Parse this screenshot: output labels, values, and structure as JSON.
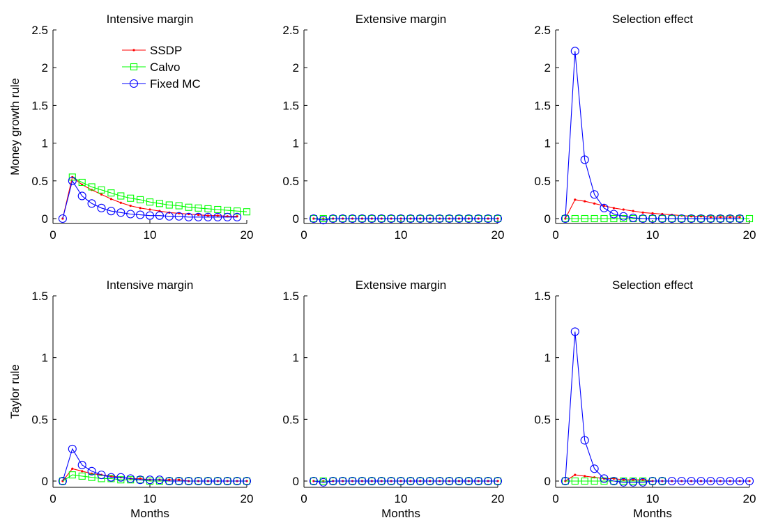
{
  "chart_data": [
    {
      "type": "line",
      "title": "Intensive margin",
      "xlabel": "",
      "ylabel": "Money growth rule",
      "xlim": [
        0,
        20
      ],
      "ylim": [
        -0.1,
        2.5
      ],
      "xticks": [
        "0",
        "10",
        "20"
      ],
      "yticks": [
        "0",
        "0.5",
        "1",
        "1.5",
        "2",
        "2.5"
      ],
      "legend": {
        "position": "top-right",
        "entries": [
          "SSDP",
          "Calvo",
          "Fixed MC"
        ]
      },
      "series": [
        {
          "name": "SSDP",
          "color": "#ff0000",
          "marker": "dot",
          "x": [
            1,
            2,
            3,
            4,
            5,
            6,
            7,
            8,
            9,
            10,
            11,
            12,
            13,
            14,
            15,
            16,
            17,
            18,
            19
          ],
          "y": [
            0.0,
            0.55,
            0.45,
            0.38,
            0.32,
            0.26,
            0.21,
            0.17,
            0.14,
            0.12,
            0.1,
            0.08,
            0.07,
            0.06,
            0.05,
            0.04,
            0.04,
            0.03,
            0.03
          ]
        },
        {
          "name": "Calvo",
          "color": "#00ff00",
          "marker": "square",
          "x": [
            2,
            3,
            4,
            5,
            6,
            7,
            8,
            9,
            10,
            11,
            12,
            13,
            14,
            15,
            16,
            17,
            18,
            19,
            20
          ],
          "y": [
            0.55,
            0.48,
            0.42,
            0.38,
            0.34,
            0.3,
            0.27,
            0.25,
            0.22,
            0.2,
            0.18,
            0.17,
            0.15,
            0.14,
            0.13,
            0.12,
            0.11,
            0.1,
            0.09
          ]
        },
        {
          "name": "Fixed MC",
          "color": "#0000ff",
          "marker": "circle",
          "x": [
            1,
            2,
            3,
            4,
            5,
            6,
            7,
            8,
            9,
            10,
            11,
            12,
            13,
            14,
            15,
            16,
            17,
            18,
            19
          ],
          "y": [
            0.0,
            0.5,
            0.3,
            0.2,
            0.14,
            0.1,
            0.08,
            0.06,
            0.05,
            0.04,
            0.04,
            0.03,
            0.03,
            0.02,
            0.02,
            0.02,
            0.02,
            0.02,
            0.02
          ]
        }
      ]
    },
    {
      "type": "line",
      "title": "Extensive margin",
      "xlabel": "",
      "ylabel": "",
      "xlim": [
        0,
        20
      ],
      "ylim": [
        -0.1,
        2.5
      ],
      "xticks": [
        "0",
        "10",
        "20"
      ],
      "yticks": [
        "0",
        "0.5",
        "1",
        "1.5",
        "2",
        "2.5"
      ],
      "series": [
        {
          "name": "SSDP",
          "color": "#ff0000",
          "marker": "dot",
          "x": [
            1,
            2,
            3,
            4,
            5,
            6,
            7,
            8,
            9,
            10,
            11,
            12,
            13,
            14,
            15,
            16,
            17,
            18,
            19,
            20
          ],
          "y": [
            0,
            0,
            0,
            0,
            0,
            0,
            0,
            0,
            0,
            0,
            0,
            0,
            0,
            0,
            0,
            0,
            0,
            0,
            0,
            0
          ]
        },
        {
          "name": "Calvo",
          "color": "#00ff00",
          "marker": "square",
          "x": [
            1,
            2,
            3,
            4,
            5,
            6,
            7,
            8,
            9,
            10,
            11,
            12,
            13,
            14,
            15,
            16,
            17,
            18,
            19,
            20
          ],
          "y": [
            0,
            0,
            0,
            0,
            0,
            0,
            0,
            0,
            0,
            0,
            0,
            0,
            0,
            0,
            0,
            0,
            0,
            0,
            0,
            0
          ]
        },
        {
          "name": "Fixed MC",
          "color": "#0000ff",
          "marker": "circle",
          "x": [
            1,
            2,
            3,
            4,
            5,
            6,
            7,
            8,
            9,
            10,
            11,
            12,
            13,
            14,
            15,
            16,
            17,
            18,
            19,
            20
          ],
          "y": [
            0.0,
            -0.02,
            0,
            0,
            0,
            0,
            0,
            0,
            0,
            0,
            0,
            0,
            0,
            0,
            0,
            0,
            0,
            0,
            0,
            0
          ]
        }
      ]
    },
    {
      "type": "line",
      "title": "Selection effect",
      "xlabel": "",
      "ylabel": "",
      "xlim": [
        0,
        20
      ],
      "ylim": [
        -0.1,
        2.5
      ],
      "xticks": [
        "0",
        "10",
        "20"
      ],
      "yticks": [
        "0",
        "0.5",
        "1",
        "1.5",
        "2",
        "2.5"
      ],
      "series": [
        {
          "name": "SSDP",
          "color": "#ff0000",
          "marker": "dot",
          "x": [
            1,
            2,
            3,
            4,
            5,
            6,
            7,
            8,
            9,
            10,
            11,
            12,
            13,
            14,
            15,
            16,
            17,
            18,
            19
          ],
          "y": [
            0.0,
            0.25,
            0.23,
            0.2,
            0.17,
            0.14,
            0.12,
            0.1,
            0.08,
            0.07,
            0.06,
            0.05,
            0.04,
            0.03,
            0.03,
            0.02,
            0.02,
            0.02,
            0.02
          ]
        },
        {
          "name": "Calvo",
          "color": "#00ff00",
          "marker": "square",
          "x": [
            1,
            2,
            3,
            4,
            5,
            6,
            7,
            8,
            9,
            10,
            11,
            12,
            13,
            14,
            15,
            16,
            17,
            18,
            19,
            20
          ],
          "y": [
            0,
            0,
            0,
            0,
            0,
            0,
            0,
            0,
            0,
            0,
            0,
            0,
            0,
            0,
            0,
            0,
            0,
            0,
            0,
            0
          ]
        },
        {
          "name": "Fixed MC",
          "color": "#0000ff",
          "marker": "circle",
          "x": [
            1,
            2,
            3,
            4,
            5,
            6,
            7,
            8,
            9,
            10,
            11,
            12,
            13,
            14,
            15,
            16,
            17,
            18,
            19
          ],
          "y": [
            0.0,
            2.22,
            0.78,
            0.32,
            0.14,
            0.06,
            0.03,
            0.01,
            0.0,
            0.0,
            0.0,
            0.0,
            0.0,
            0.0,
            0.0,
            0.0,
            0.0,
            0.0,
            0.0
          ]
        }
      ]
    },
    {
      "type": "line",
      "title": "Intensive margin",
      "xlabel": "Months",
      "ylabel": "Taylor rule",
      "xlim": [
        0,
        20
      ],
      "ylim": [
        -0.05,
        1.5
      ],
      "xticks": [
        "0",
        "10",
        "20"
      ],
      "yticks": [
        "0",
        "0.5",
        "1",
        "1.5"
      ],
      "series": [
        {
          "name": "SSDP",
          "color": "#ff0000",
          "marker": "dot",
          "x": [
            1,
            2,
            3,
            4,
            5,
            6,
            7,
            8,
            9,
            10,
            11,
            12,
            13,
            14,
            15,
            16,
            17,
            18,
            19,
            20
          ],
          "y": [
            0.0,
            0.1,
            0.08,
            0.06,
            0.05,
            0.04,
            0.03,
            0.02,
            0.02,
            0.01,
            0.01,
            0.01,
            0.01,
            0.0,
            0.0,
            0.0,
            0.0,
            0.0,
            0.0,
            0.0
          ]
        },
        {
          "name": "Calvo",
          "color": "#00ff00",
          "marker": "square",
          "x": [
            1,
            2,
            3,
            4,
            5,
            6,
            7,
            8,
            9,
            10,
            11,
            12,
            13,
            14,
            15,
            16,
            17,
            18,
            19,
            20
          ],
          "y": [
            0.0,
            0.05,
            0.04,
            0.03,
            0.02,
            0.02,
            0.01,
            0.01,
            0.01,
            0.0,
            0.0,
            0.0,
            0.0,
            0.0,
            0.0,
            0.0,
            0.0,
            0.0,
            0.0,
            0.0
          ]
        },
        {
          "name": "Fixed MC",
          "color": "#0000ff",
          "marker": "circle",
          "x": [
            1,
            2,
            3,
            4,
            5,
            6,
            7,
            8,
            9,
            10,
            11,
            12,
            13,
            14,
            15,
            16,
            17,
            18,
            19,
            20
          ],
          "y": [
            0.0,
            0.26,
            0.13,
            0.08,
            0.05,
            0.03,
            0.03,
            0.02,
            0.01,
            0.01,
            0.01,
            0.0,
            0.0,
            0.0,
            0.0,
            0.0,
            0.0,
            0.0,
            0.0,
            0.0
          ]
        }
      ]
    },
    {
      "type": "line",
      "title": "Extensive margin",
      "xlabel": "Months",
      "ylabel": "",
      "xlim": [
        0,
        20
      ],
      "ylim": [
        -0.05,
        1.5
      ],
      "xticks": [
        "0",
        "10",
        "20"
      ],
      "yticks": [
        "0",
        "0.5",
        "1",
        "1.5"
      ],
      "series": [
        {
          "name": "SSDP",
          "color": "#ff0000",
          "marker": "dot",
          "x": [
            1,
            2,
            3,
            4,
            5,
            6,
            7,
            8,
            9,
            10,
            11,
            12,
            13,
            14,
            15,
            16,
            17,
            18,
            19,
            20
          ],
          "y": [
            0,
            0,
            0,
            0,
            0,
            0,
            0,
            0,
            0,
            0,
            0,
            0,
            0,
            0,
            0,
            0,
            0,
            0,
            0,
            0
          ]
        },
        {
          "name": "Calvo",
          "color": "#00ff00",
          "marker": "square",
          "x": [
            1,
            2,
            3,
            4,
            5,
            6,
            7,
            8,
            9,
            10,
            11,
            12,
            13,
            14,
            15,
            16,
            17,
            18,
            19,
            20
          ],
          "y": [
            0,
            0,
            0,
            0,
            0,
            0,
            0,
            0,
            0,
            0,
            0,
            0,
            0,
            0,
            0,
            0,
            0,
            0,
            0,
            0
          ]
        },
        {
          "name": "Fixed MC",
          "color": "#0000ff",
          "marker": "circle",
          "x": [
            1,
            2,
            3,
            4,
            5,
            6,
            7,
            8,
            9,
            10,
            11,
            12,
            13,
            14,
            15,
            16,
            17,
            18,
            19,
            20
          ],
          "y": [
            0.0,
            -0.01,
            0,
            0,
            0,
            0,
            0,
            0,
            0,
            0,
            0,
            0,
            0,
            0,
            0,
            0,
            0,
            0,
            0,
            0
          ]
        }
      ]
    },
    {
      "type": "line",
      "title": "Selection effect",
      "xlabel": "Months",
      "ylabel": "",
      "xlim": [
        0,
        20
      ],
      "ylim": [
        -0.05,
        1.5
      ],
      "xticks": [
        "0",
        "10",
        "20"
      ],
      "yticks": [
        "0",
        "0.5",
        "1",
        "1.5"
      ],
      "series": [
        {
          "name": "SSDP",
          "color": "#ff0000",
          "marker": "dot",
          "x": [
            1,
            2,
            3,
            4,
            5,
            6,
            7,
            8,
            9,
            10,
            11,
            12,
            13,
            14,
            15,
            16,
            17,
            18,
            19,
            20
          ],
          "y": [
            0.0,
            0.05,
            0.04,
            0.03,
            0.02,
            0.02,
            0.01,
            0.01,
            0.01,
            0.0,
            0.0,
            0.0,
            0.0,
            0.0,
            0.0,
            0.0,
            0.0,
            0.0,
            0.0,
            0.0
          ]
        },
        {
          "name": "Calvo",
          "color": "#00ff00",
          "marker": "square",
          "x": [
            1,
            2,
            3,
            4,
            5,
            6,
            7,
            8,
            9,
            10,
            11
          ],
          "y": [
            0,
            0,
            0,
            0,
            0,
            0,
            0,
            0,
            0,
            0,
            0
          ]
        },
        {
          "name": "Fixed MC",
          "color": "#0000ff",
          "marker": "circle",
          "x": [
            1,
            2,
            3,
            4,
            5,
            6,
            7,
            8,
            9,
            10,
            11,
            12,
            13,
            14,
            15,
            16,
            17,
            18,
            19,
            20
          ],
          "y": [
            0.0,
            1.21,
            0.33,
            0.1,
            0.02,
            0.0,
            -0.01,
            -0.01,
            -0.01,
            0.0,
            0.0,
            0.0,
            0.0,
            0.0,
            0.0,
            0.0,
            0.0,
            0.0,
            0.0,
            0.0
          ]
        }
      ]
    }
  ]
}
